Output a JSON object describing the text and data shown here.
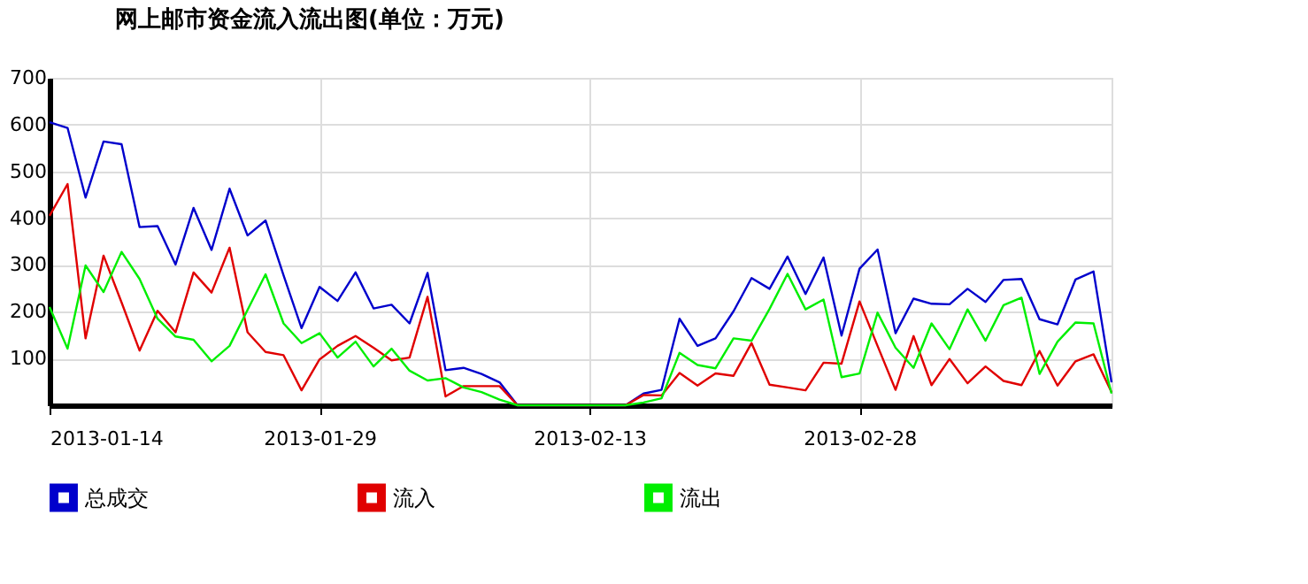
{
  "chart_data": {
    "type": "line",
    "title": "网上邮市资金流入流出图(单位：万元)",
    "x": [
      "2013-01-14",
      "2013-01-15",
      "2013-01-16",
      "2013-01-17",
      "2013-01-18",
      "2013-01-19",
      "2013-01-20",
      "2013-01-21",
      "2013-01-22",
      "2013-01-23",
      "2013-01-24",
      "2013-01-25",
      "2013-01-26",
      "2013-01-27",
      "2013-01-28",
      "2013-01-29",
      "2013-01-30",
      "2013-01-31",
      "2013-02-01",
      "2013-02-02",
      "2013-02-03",
      "2013-02-04",
      "2013-02-05",
      "2013-02-06",
      "2013-02-07",
      "2013-02-08",
      "2013-02-09",
      "2013-02-10",
      "2013-02-11",
      "2013-02-12",
      "2013-02-13",
      "2013-02-14",
      "2013-02-15",
      "2013-02-16",
      "2013-02-17",
      "2013-02-18",
      "2013-02-19",
      "2013-02-20",
      "2013-02-21",
      "2013-02-22",
      "2013-02-23",
      "2013-02-24",
      "2013-02-25",
      "2013-02-26",
      "2013-02-27",
      "2013-02-28",
      "2013-03-01",
      "2013-03-02",
      "2013-03-03",
      "2013-03-04",
      "2013-03-05",
      "2013-03-06",
      "2013-03-07",
      "2013-03-08",
      "2013-03-09",
      "2013-03-10",
      "2013-03-11",
      "2013-03-12",
      "2013-03-13",
      "2013-03-14"
    ],
    "xlim": [
      "2013-01-14",
      "2013-03-14"
    ],
    "xticks": [
      "2013-01-14",
      "2013-01-29",
      "2013-02-13",
      "2013-02-28"
    ],
    "ylim": [
      0,
      700
    ],
    "yticks": [
      100,
      200,
      300,
      400,
      500,
      600,
      700
    ],
    "grid": true,
    "legend": "bottom",
    "marker": "none",
    "line_style": "solid",
    "series": [
      {
        "name": "总成交",
        "color": "#0000cc",
        "values": [
          605,
          593,
          444,
          564,
          558,
          381,
          383,
          301,
          422,
          332,
          463,
          363,
          395,
          278,
          165,
          253,
          223,
          284,
          207,
          215,
          175,
          283,
          75,
          80,
          67,
          49,
          0,
          0,
          0,
          0,
          0,
          0,
          0,
          25,
          33,
          185,
          127,
          143,
          201,
          272,
          249,
          318,
          238,
          316,
          149,
          292,
          333,
          154,
          228,
          217,
          216,
          249,
          221,
          268,
          270,
          184,
          173,
          269,
          286,
          49
        ]
      },
      {
        "name": "流入",
        "color": "#e00000",
        "values": [
          405,
          473,
          143,
          320,
          220,
          117,
          202,
          156,
          284,
          241,
          337,
          156,
          114,
          107,
          32,
          98,
          127,
          148,
          123,
          96,
          102,
          232,
          19,
          41,
          41,
          41,
          0,
          0,
          0,
          0,
          0,
          0,
          0,
          22,
          21,
          69,
          42,
          68,
          63,
          133,
          44,
          38,
          32,
          91,
          89,
          222,
          127,
          33,
          148,
          43,
          99,
          47,
          83,
          52,
          43,
          116,
          42,
          94,
          109,
          28
        ]
      },
      {
        "name": "流出",
        "color": "#00ee00",
        "values": [
          210,
          121,
          299,
          242,
          328,
          270,
          185,
          147,
          140,
          94,
          127,
          204,
          280,
          175,
          133,
          154,
          102,
          136,
          83,
          121,
          74,
          53,
          58,
          38,
          28,
          12,
          0,
          0,
          0,
          0,
          0,
          0,
          0,
          6,
          15,
          112,
          86,
          79,
          143,
          138,
          206,
          281,
          205,
          226,
          60,
          68,
          198,
          123,
          80,
          175,
          120,
          205,
          138,
          214,
          230,
          67,
          136,
          177,
          175,
          25
        ]
      }
    ]
  }
}
